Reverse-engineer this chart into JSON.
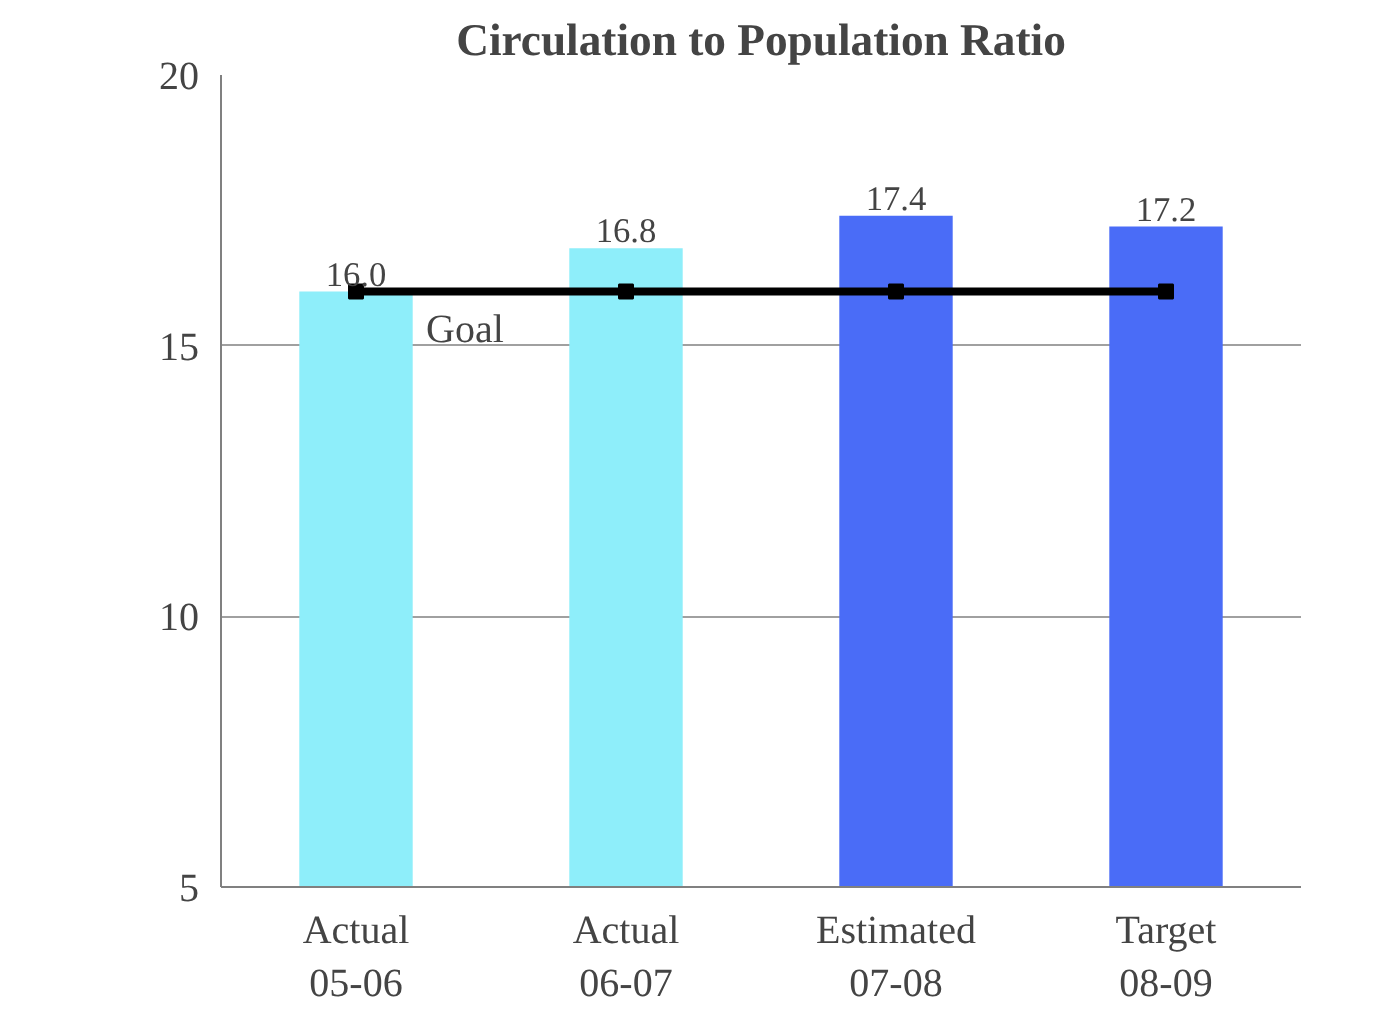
{
  "chart_data": {
    "type": "bar",
    "title": "Circulation to Population Ratio",
    "categories": [
      "Actual\n05-06",
      "Actual\n06-07",
      "Estimated\n07-08",
      "Target\n08-09"
    ],
    "series": [
      {
        "colors": [
          "#8eeefa",
          "#8eeefa",
          "#4a6cf7",
          "#4a6cf7"
        ],
        "values": [
          16.0,
          16.8,
          17.4,
          17.2
        ],
        "value_labels": [
          "16.0",
          "16.8",
          "17.4",
          "17.2"
        ]
      },
      {
        "type": "line",
        "name": "Goal",
        "color": "#000000",
        "values": [
          16,
          16,
          16,
          16
        ],
        "marker": "square"
      }
    ],
    "ylim": [
      5,
      20
    ],
    "yticks": [
      5,
      10,
      15,
      20
    ],
    "grid": "y"
  }
}
